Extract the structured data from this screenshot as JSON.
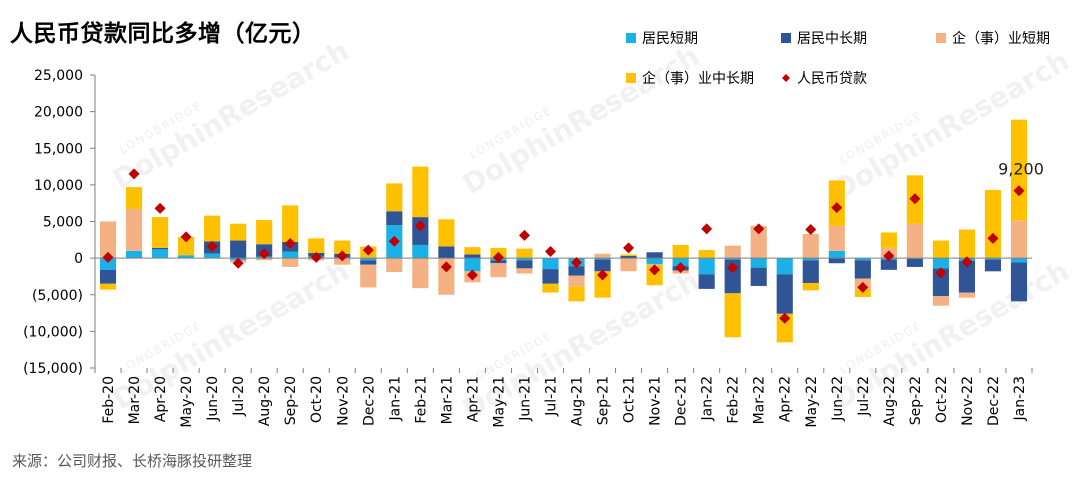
{
  "chart_data": {
    "type": "bar",
    "title": "人民币贷款同比多增（亿元）",
    "source": "来源：公司财报、长桥海豚投研整理",
    "categories": [
      "Feb-20",
      "Mar-20",
      "Apr-20",
      "May-20",
      "Jun-20",
      "Jul-20",
      "Aug-20",
      "Sep-20",
      "Oct-20",
      "Nov-20",
      "Dec-20",
      "Jan-21",
      "Feb-21",
      "Mar-21",
      "Apr-21",
      "May-21",
      "Jun-21",
      "Jul-21",
      "Aug-21",
      "Sep-21",
      "Oct-21",
      "Nov-21",
      "Dec-21",
      "Jan-22",
      "Feb-22",
      "Mar-22",
      "Apr-22",
      "May-22",
      "Jun-22",
      "Jul-22",
      "Aug-22",
      "Sep-22",
      "Oct-22",
      "Nov-22",
      "Dec-22",
      "Jan-23"
    ],
    "ylim": [
      -15000,
      25000
    ],
    "yticks": [
      25000,
      20000,
      15000,
      10000,
      5000,
      0,
      -5000,
      -10000,
      -15000
    ],
    "ytick_labels": [
      "25,000",
      "20,000",
      "15,000",
      "10,000",
      "5,000",
      "0",
      "(5,000)",
      "(10,000)",
      "(15,000)"
    ],
    "series": [
      {
        "name": "居民短期",
        "color": "#1ab0e8",
        "values": [
          -1600,
          1000,
          1200,
          400,
          600,
          -300,
          200,
          900,
          200,
          100,
          -300,
          4500,
          1800,
          0,
          -1800,
          -300,
          -300,
          -1500,
          -1100,
          -200,
          0,
          -800,
          -1100,
          -2200,
          -200,
          -1300,
          -2200,
          -300,
          1000,
          -300,
          -200,
          -100,
          -1400,
          -400,
          -200,
          -600
        ]
      },
      {
        "name": "居民中长期",
        "color": "#2f5597",
        "values": [
          -1900,
          0,
          200,
          0,
          1700,
          2400,
          1700,
          1300,
          500,
          500,
          -600,
          1900,
          3800,
          1600,
          500,
          -400,
          -1100,
          -2000,
          -1300,
          -1600,
          300,
          800,
          -600,
          -2000,
          -4600,
          -2500,
          -5400,
          -3100,
          -700,
          -2500,
          -1400,
          -1100,
          -3800,
          -4300,
          -1600,
          -5300
        ]
      },
      {
        "name": "企（事）业短期",
        "color": "#f4b183",
        "values": [
          5000,
          5700,
          0,
          0,
          0,
          -300,
          -300,
          -1200,
          -300,
          -900,
          -3100,
          -1900,
          -4100,
          -5000,
          -1500,
          -1900,
          -700,
          0,
          -1500,
          600,
          -1800,
          -200,
          -400,
          0,
          1700,
          4400,
          0,
          3300,
          3400,
          -1500,
          1400,
          4700,
          -1300,
          -700,
          0,
          5100
        ]
      },
      {
        "name": "企（事）业中长期",
        "color": "#ffc000",
        "values": [
          -800,
          3000,
          4200,
          2500,
          3500,
          2300,
          3300,
          5000,
          2000,
          1800,
          1600,
          3800,
          6900,
          3700,
          1000,
          1400,
          1300,
          -1200,
          -2000,
          -3600,
          200,
          -2700,
          1800,
          1100,
          -6000,
          0,
          -3900,
          -1000,
          6200,
          -1000,
          2100,
          6600,
          2400,
          3900,
          9300,
          13800
        ]
      },
      {
        "name": "人民币贷款",
        "color": "#c00000",
        "values": [
          100,
          11500,
          6800,
          2900,
          1600,
          -700,
          600,
          2000,
          100,
          300,
          1100,
          2300,
          4400,
          -1200,
          -2300,
          100,
          3100,
          900,
          -600,
          -2300,
          1400,
          -1600,
          -1300,
          4000,
          -1300,
          4000,
          -8200,
          3900,
          6900,
          -4000,
          300,
          8100,
          -2000,
          -500,
          2700,
          9200
        ]
      }
    ],
    "annotations": [
      {
        "category": "Jan-23",
        "label": "9,200"
      }
    ],
    "legend_placement": "top-right",
    "grid": false
  },
  "watermark": {
    "brand": "DolphinResearch",
    "sub": "LONGBRIDGE"
  }
}
